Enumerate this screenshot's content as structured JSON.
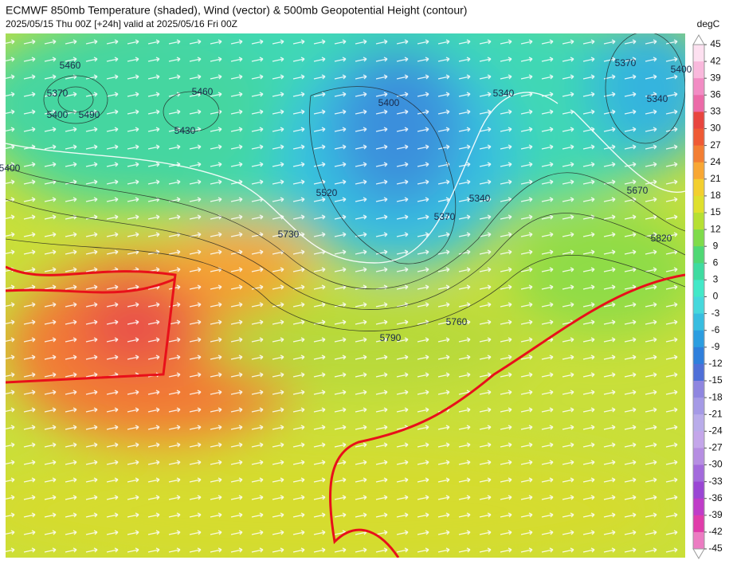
{
  "header": {
    "title": "ECMWF 850mb Temperature (shaded), Wind (vector) & 500mb Geopotential Height (contour)",
    "subtitle": "2025/05/15 Thu 00Z [+24h] valid at 2025/05/16 Fri 00Z"
  },
  "colorbar": {
    "unit": "degC",
    "ticks": [
      45,
      42,
      39,
      36,
      33,
      30,
      27,
      24,
      21,
      18,
      15,
      12,
      9,
      6,
      3,
      0,
      -3,
      -6,
      -9,
      -12,
      -15,
      -18,
      -21,
      -24,
      -27,
      -30,
      -33,
      -36,
      -39,
      -42,
      -45
    ],
    "colors": [
      "#fde0f0",
      "#f9b8dc",
      "#f28cc4",
      "#ec6aa8",
      "#e8453f",
      "#ef5a35",
      "#f37e33",
      "#f8a734",
      "#f3cf2f",
      "#dfe02d",
      "#b6e033",
      "#7fdb4b",
      "#4fd874",
      "#3fdba0",
      "#43e8c8",
      "#46d8dc",
      "#38bde0",
      "#2c9de0",
      "#2f7fdc",
      "#4f6fd8",
      "#8f86e0",
      "#a59ae6",
      "#b9acea",
      "#c4a6ea",
      "#b68ee2",
      "#a36adc",
      "#9a46d4",
      "#bf3cc8",
      "#e03caa",
      "#ec7cc2"
    ]
  },
  "contour_labels": [
    "5460",
    "5370",
    "5400",
    "5490",
    "5460",
    "5430",
    "5400",
    "5520",
    "5400",
    "5340",
    "5340",
    "5370",
    "5340",
    "5370",
    "5730",
    "5790",
    "5760",
    "5670",
    "5820",
    "5400"
  ]
}
